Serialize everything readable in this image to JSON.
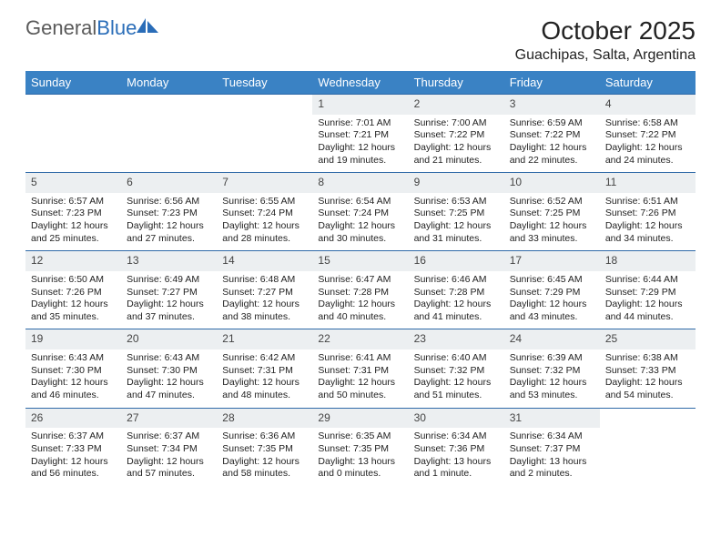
{
  "brand": {
    "name_part1": "General",
    "name_part2": "Blue"
  },
  "header": {
    "title": "October 2025",
    "location": "Guachipas, Salta, Argentina"
  },
  "colors": {
    "header_bg": "#3a82c4",
    "row_border": "#2f6aa8",
    "daynum_bg": "#eceff1",
    "text": "#222222",
    "logo_gray": "#5a5a5a",
    "logo_blue": "#2a6db8"
  },
  "weekdays": [
    "Sunday",
    "Monday",
    "Tuesday",
    "Wednesday",
    "Thursday",
    "Friday",
    "Saturday"
  ],
  "weeks": [
    [
      null,
      null,
      null,
      {
        "n": "1",
        "sr": "7:01 AM",
        "ss": "7:21 PM",
        "dl": "12 hours and 19 minutes."
      },
      {
        "n": "2",
        "sr": "7:00 AM",
        "ss": "7:22 PM",
        "dl": "12 hours and 21 minutes."
      },
      {
        "n": "3",
        "sr": "6:59 AM",
        "ss": "7:22 PM",
        "dl": "12 hours and 22 minutes."
      },
      {
        "n": "4",
        "sr": "6:58 AM",
        "ss": "7:22 PM",
        "dl": "12 hours and 24 minutes."
      }
    ],
    [
      {
        "n": "5",
        "sr": "6:57 AM",
        "ss": "7:23 PM",
        "dl": "12 hours and 25 minutes."
      },
      {
        "n": "6",
        "sr": "6:56 AM",
        "ss": "7:23 PM",
        "dl": "12 hours and 27 minutes."
      },
      {
        "n": "7",
        "sr": "6:55 AM",
        "ss": "7:24 PM",
        "dl": "12 hours and 28 minutes."
      },
      {
        "n": "8",
        "sr": "6:54 AM",
        "ss": "7:24 PM",
        "dl": "12 hours and 30 minutes."
      },
      {
        "n": "9",
        "sr": "6:53 AM",
        "ss": "7:25 PM",
        "dl": "12 hours and 31 minutes."
      },
      {
        "n": "10",
        "sr": "6:52 AM",
        "ss": "7:25 PM",
        "dl": "12 hours and 33 minutes."
      },
      {
        "n": "11",
        "sr": "6:51 AM",
        "ss": "7:26 PM",
        "dl": "12 hours and 34 minutes."
      }
    ],
    [
      {
        "n": "12",
        "sr": "6:50 AM",
        "ss": "7:26 PM",
        "dl": "12 hours and 35 minutes."
      },
      {
        "n": "13",
        "sr": "6:49 AM",
        "ss": "7:27 PM",
        "dl": "12 hours and 37 minutes."
      },
      {
        "n": "14",
        "sr": "6:48 AM",
        "ss": "7:27 PM",
        "dl": "12 hours and 38 minutes."
      },
      {
        "n": "15",
        "sr": "6:47 AM",
        "ss": "7:28 PM",
        "dl": "12 hours and 40 minutes."
      },
      {
        "n": "16",
        "sr": "6:46 AM",
        "ss": "7:28 PM",
        "dl": "12 hours and 41 minutes."
      },
      {
        "n": "17",
        "sr": "6:45 AM",
        "ss": "7:29 PM",
        "dl": "12 hours and 43 minutes."
      },
      {
        "n": "18",
        "sr": "6:44 AM",
        "ss": "7:29 PM",
        "dl": "12 hours and 44 minutes."
      }
    ],
    [
      {
        "n": "19",
        "sr": "6:43 AM",
        "ss": "7:30 PM",
        "dl": "12 hours and 46 minutes."
      },
      {
        "n": "20",
        "sr": "6:43 AM",
        "ss": "7:30 PM",
        "dl": "12 hours and 47 minutes."
      },
      {
        "n": "21",
        "sr": "6:42 AM",
        "ss": "7:31 PM",
        "dl": "12 hours and 48 minutes."
      },
      {
        "n": "22",
        "sr": "6:41 AM",
        "ss": "7:31 PM",
        "dl": "12 hours and 50 minutes."
      },
      {
        "n": "23",
        "sr": "6:40 AM",
        "ss": "7:32 PM",
        "dl": "12 hours and 51 minutes."
      },
      {
        "n": "24",
        "sr": "6:39 AM",
        "ss": "7:32 PM",
        "dl": "12 hours and 53 minutes."
      },
      {
        "n": "25",
        "sr": "6:38 AM",
        "ss": "7:33 PM",
        "dl": "12 hours and 54 minutes."
      }
    ],
    [
      {
        "n": "26",
        "sr": "6:37 AM",
        "ss": "7:33 PM",
        "dl": "12 hours and 56 minutes."
      },
      {
        "n": "27",
        "sr": "6:37 AM",
        "ss": "7:34 PM",
        "dl": "12 hours and 57 minutes."
      },
      {
        "n": "28",
        "sr": "6:36 AM",
        "ss": "7:35 PM",
        "dl": "12 hours and 58 minutes."
      },
      {
        "n": "29",
        "sr": "6:35 AM",
        "ss": "7:35 PM",
        "dl": "13 hours and 0 minutes."
      },
      {
        "n": "30",
        "sr": "6:34 AM",
        "ss": "7:36 PM",
        "dl": "13 hours and 1 minute."
      },
      {
        "n": "31",
        "sr": "6:34 AM",
        "ss": "7:37 PM",
        "dl": "13 hours and 2 minutes."
      },
      null
    ]
  ],
  "labels": {
    "sunrise": "Sunrise:",
    "sunset": "Sunset:",
    "daylight": "Daylight:"
  }
}
